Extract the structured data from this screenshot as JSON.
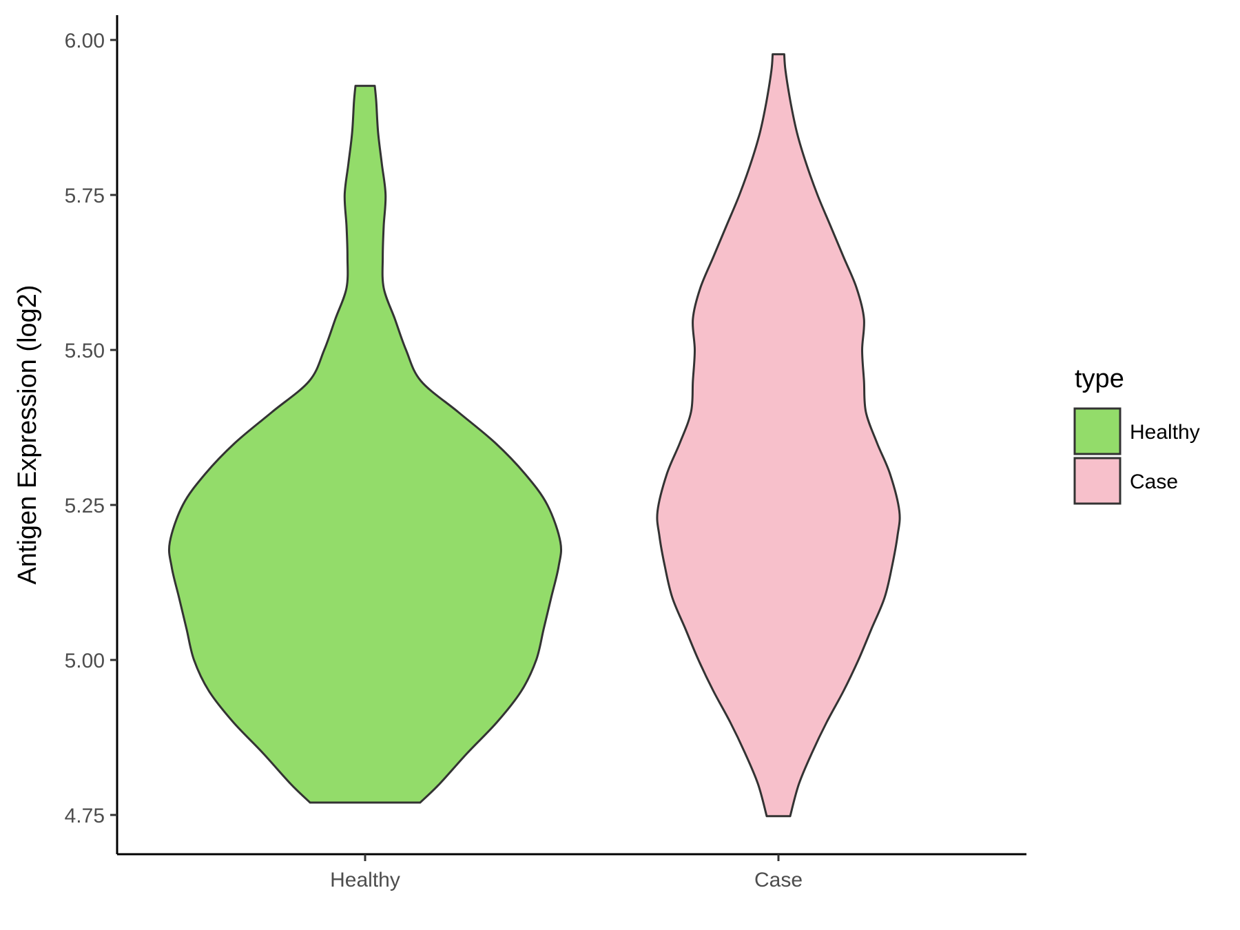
{
  "chart_data": {
    "type": "violin",
    "ylabel": "Antigen Expression (log2)",
    "xlabel": "",
    "categories": [
      "Healthy",
      "Case"
    ],
    "yticks": [
      "4.75",
      "5.00",
      "5.25",
      "5.50",
      "5.75",
      "6.00"
    ],
    "ylim": [
      4.69,
      6.04
    ],
    "grid": false,
    "legend": {
      "title": "type",
      "position": "right",
      "entries": [
        {
          "label": "Healthy",
          "color": "#93dc6a"
        },
        {
          "label": "Case",
          "color": "#f7c0cb"
        }
      ]
    },
    "series": [
      {
        "name": "Healthy",
        "color": "#93dc6a",
        "min": 4.77,
        "max": 5.926,
        "density": [
          [
            4.77,
            0.296
          ],
          [
            4.8,
            0.4
          ],
          [
            4.85,
            0.55
          ],
          [
            4.9,
            0.71
          ],
          [
            4.95,
            0.84
          ],
          [
            5.0,
            0.92
          ],
          [
            5.05,
            0.96
          ],
          [
            5.1,
            1.0
          ],
          [
            5.15,
            1.04
          ],
          [
            5.19,
            1.05
          ],
          [
            5.25,
            0.98
          ],
          [
            5.3,
            0.86
          ],
          [
            5.35,
            0.7
          ],
          [
            5.4,
            0.5
          ],
          [
            5.45,
            0.3
          ],
          [
            5.5,
            0.22
          ],
          [
            5.55,
            0.16
          ],
          [
            5.6,
            0.1
          ],
          [
            5.65,
            0.095
          ],
          [
            5.7,
            0.1
          ],
          [
            5.75,
            0.11
          ],
          [
            5.8,
            0.09
          ],
          [
            5.85,
            0.07
          ],
          [
            5.9,
            0.06
          ],
          [
            5.926,
            0.052
          ]
        ]
      },
      {
        "name": "Case",
        "color": "#f7c0cb",
        "min": 4.748,
        "max": 5.977,
        "density": [
          [
            4.748,
            0.063
          ],
          [
            4.8,
            0.11
          ],
          [
            4.85,
            0.18
          ],
          [
            4.9,
            0.26
          ],
          [
            4.95,
            0.35
          ],
          [
            5.0,
            0.43
          ],
          [
            5.05,
            0.5
          ],
          [
            5.1,
            0.57
          ],
          [
            5.15,
            0.61
          ],
          [
            5.2,
            0.64
          ],
          [
            5.24,
            0.65
          ],
          [
            5.3,
            0.6
          ],
          [
            5.35,
            0.53
          ],
          [
            5.4,
            0.47
          ],
          [
            5.45,
            0.46
          ],
          [
            5.5,
            0.45
          ],
          [
            5.55,
            0.46
          ],
          [
            5.6,
            0.42
          ],
          [
            5.65,
            0.35
          ],
          [
            5.7,
            0.28
          ],
          [
            5.75,
            0.21
          ],
          [
            5.8,
            0.15
          ],
          [
            5.85,
            0.1
          ],
          [
            5.9,
            0.065
          ],
          [
            5.95,
            0.038
          ],
          [
            5.977,
            0.031
          ]
        ]
      }
    ]
  }
}
